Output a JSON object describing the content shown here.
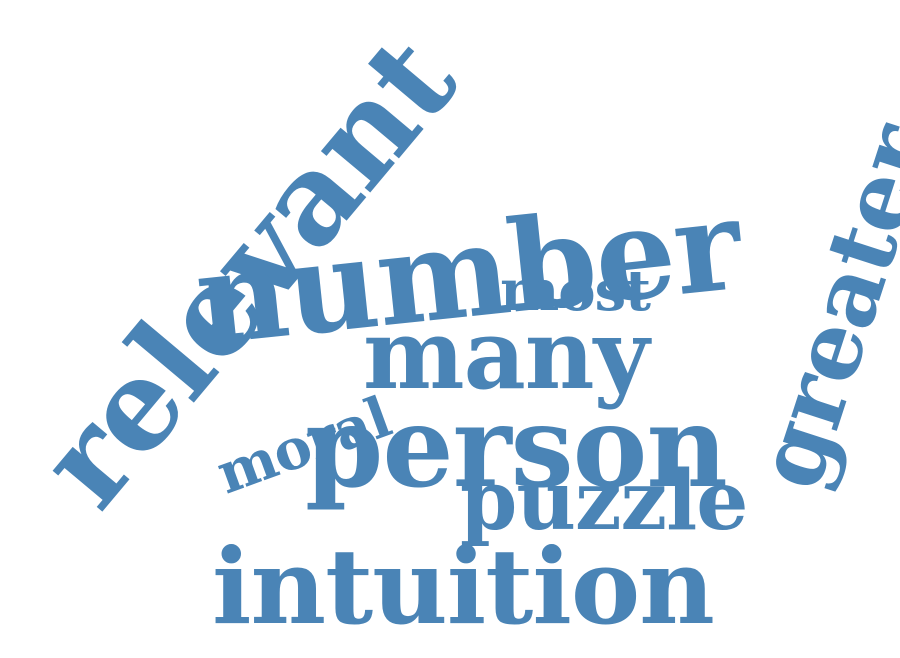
{
  "word_cloud": {
    "color": "#4a84b6",
    "words": [
      {
        "id": "relevant",
        "text": "relevant",
        "rotation": "diagonal-up"
      },
      {
        "id": "number",
        "text": "number",
        "rotation": "horizontal"
      },
      {
        "id": "most",
        "text": "most",
        "rotation": "horizontal"
      },
      {
        "id": "moral",
        "text": "moral",
        "rotation": "diagonal-up"
      },
      {
        "id": "many",
        "text": "many",
        "rotation": "horizontal"
      },
      {
        "id": "greater",
        "text": "greater",
        "rotation": "diagonal-up"
      },
      {
        "id": "person",
        "text": "person",
        "rotation": "horizontal"
      },
      {
        "id": "puzzle",
        "text": "puzzle",
        "rotation": "horizontal"
      },
      {
        "id": "intuition",
        "text": "intuition",
        "rotation": "horizontal"
      }
    ]
  }
}
